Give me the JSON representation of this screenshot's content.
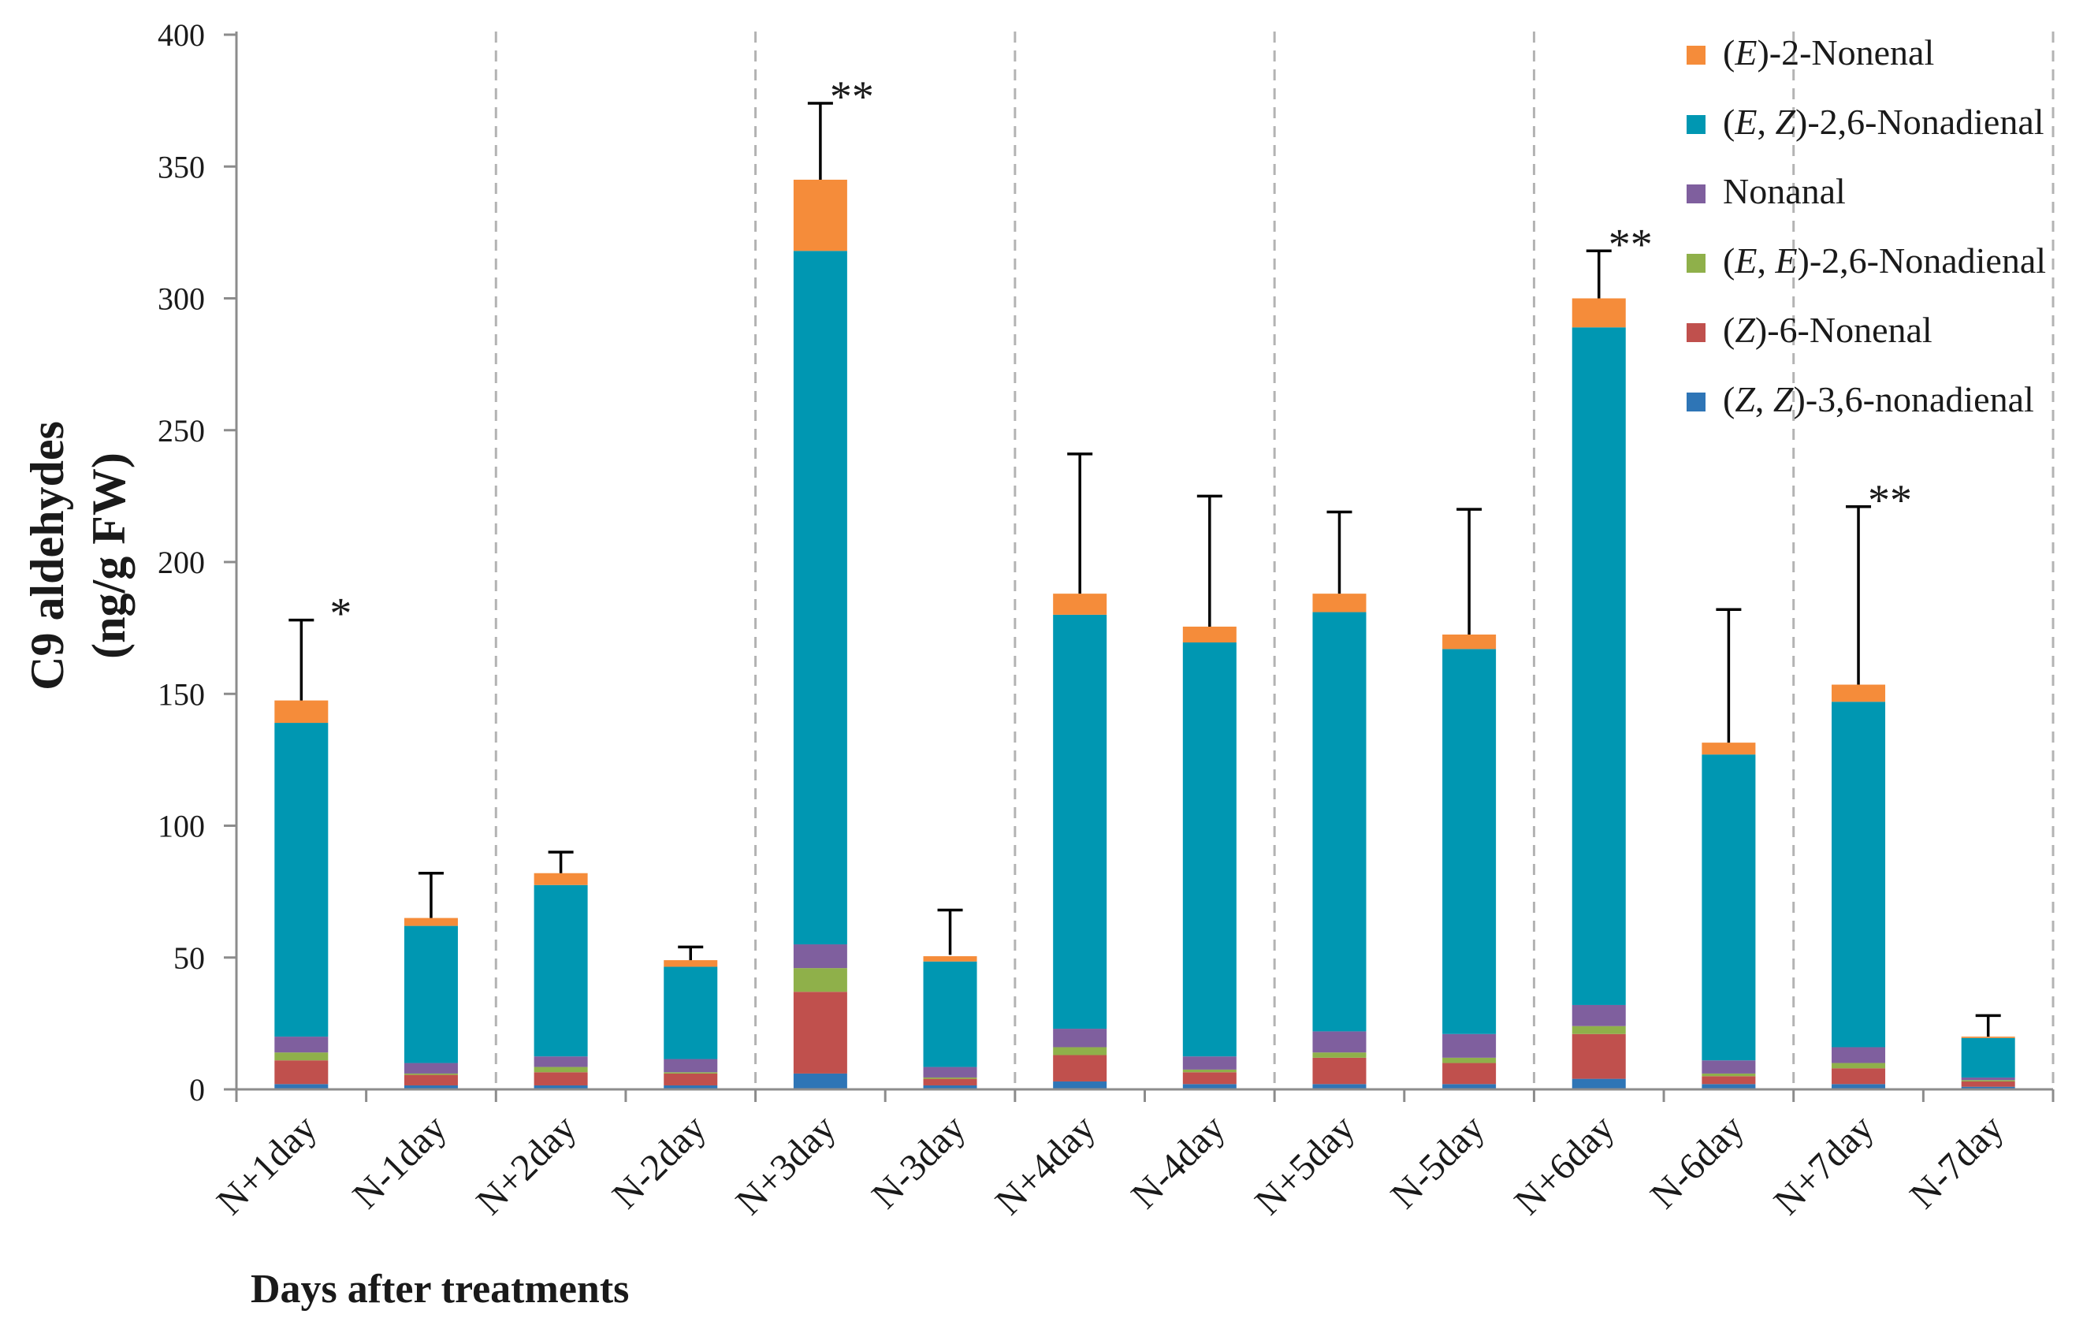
{
  "chart_data": {
    "type": "bar",
    "stacked": true,
    "title": "",
    "xlabel": "Days after treatments",
    "ylabel_lines": [
      "C9 aldehydes",
      "(ng/g FW)"
    ],
    "ylim": [
      0,
      400
    ],
    "yticks": [
      "0",
      "50",
      "100",
      "150",
      "200",
      "250",
      "300",
      "350",
      "400"
    ],
    "ytick_values": [
      0,
      50,
      100,
      150,
      200,
      250,
      300,
      350,
      400
    ],
    "categories": [
      "N+1day",
      "N-1day",
      "N+2day",
      "N-2day",
      "N+3day",
      "N-3day",
      "N+4day",
      "N-4day",
      "N+5day",
      "N-5day",
      "N+6day",
      "N-6day",
      "N+7day",
      "N-7day"
    ],
    "group_separators_after": [
      2,
      4,
      6,
      8,
      10,
      12,
      14
    ],
    "series": [
      {
        "name": "(Z, Z)-3,6-nonadienal",
        "legend_parts": [
          [
            "(",
            false
          ],
          [
            "Z",
            true
          ],
          [
            ", ",
            false
          ],
          [
            "Z",
            true
          ],
          [
            ")-3,6-nonadienal",
            false
          ]
        ],
        "color": "#2e75b6",
        "values": [
          2,
          1.5,
          1.5,
          1.5,
          6,
          1.5,
          3,
          2,
          2,
          2,
          4,
          2,
          2,
          1
        ]
      },
      {
        "name": "(Z)-6-Nonenal",
        "legend_parts": [
          [
            "(",
            false
          ],
          [
            "Z",
            true
          ],
          [
            ")-6-Nonenal",
            false
          ]
        ],
        "color": "#c0504d",
        "values": [
          9,
          4,
          5,
          4.5,
          31,
          2.5,
          10,
          4.5,
          10,
          8,
          17,
          3,
          6,
          2
        ]
      },
      {
        "name": "(E, E)-2,6-Nonadienal",
        "legend_parts": [
          [
            "(",
            false
          ],
          [
            "E",
            true
          ],
          [
            ", ",
            false
          ],
          [
            "E",
            true
          ],
          [
            ")-2,6-Nonadienal",
            false
          ]
        ],
        "color": "#8fb04a",
        "values": [
          3,
          0.5,
          2,
          0.5,
          9,
          0.5,
          3,
          1,
          2,
          2,
          3,
          1,
          2,
          0.5
        ]
      },
      {
        "name": "Nonanal",
        "legend_parts": [
          [
            "Nonanal",
            false
          ]
        ],
        "color": "#7f5f9e",
        "values": [
          6,
          4,
          4,
          5,
          9,
          4,
          7,
          5,
          8,
          9,
          8,
          5,
          6,
          1
        ]
      },
      {
        "name": "(E, Z)-2,6-Nonadienal",
        "legend_parts": [
          [
            "(",
            false
          ],
          [
            "E",
            true
          ],
          [
            ", ",
            false
          ],
          [
            "Z",
            true
          ],
          [
            ")-2,6-Nonadienal",
            false
          ]
        ],
        "color": "#0097b2",
        "values": [
          119,
          52,
          65,
          35,
          263,
          40,
          157,
          157,
          159,
          146,
          257,
          116,
          131,
          15
        ]
      },
      {
        "name": "(E)-2-Nonenal",
        "legend_parts": [
          [
            "(",
            false
          ],
          [
            "E",
            true
          ],
          [
            ")-2-Nonenal",
            false
          ]
        ],
        "color": "#f58c3a",
        "values": [
          8.5,
          3,
          4.5,
          2.5,
          27,
          2,
          8,
          6,
          7,
          5.5,
          11,
          4.5,
          6.5,
          0.5
        ]
      }
    ],
    "totals": [
      147.5,
      65,
      82,
      49,
      345,
      51,
      188,
      175.5,
      188,
      172.5,
      300,
      131.5,
      153.5,
      20
    ],
    "error_bar_upper": [
      178,
      82,
      90,
      54,
      374,
      68,
      241,
      225,
      219,
      220,
      318,
      182,
      221,
      28
    ],
    "significance": [
      "*",
      "",
      "",
      "",
      "**",
      "",
      "",
      "",
      "",
      "",
      "**",
      "",
      "**",
      ""
    ],
    "legend_position": "top-right",
    "grid": false
  }
}
